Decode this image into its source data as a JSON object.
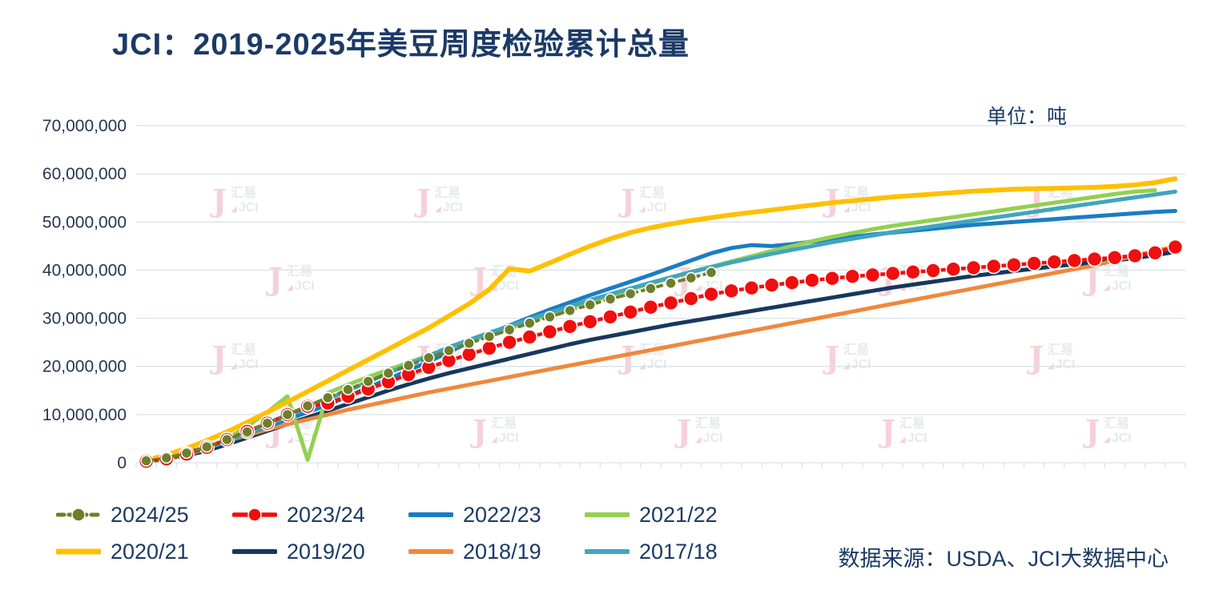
{
  "title": "JCI：2019-2025年美豆周度检验累计总量",
  "unit_label": "单位：吨",
  "source": "数据来源：USDA、JCI大数据中心",
  "watermark": {
    "logo_letter": "J",
    "line1": "汇易",
    "triangle": "◢",
    "line2": "JCI"
  },
  "chart_data": {
    "type": "line",
    "title": "JCI：2019-2025年美豆周度检验累计总量",
    "xlabel": "",
    "ylabel": "吨",
    "ylim": [
      0,
      70000000
    ],
    "ytick_step": 10000000,
    "weeks": 52,
    "grid": true,
    "legend_position": "bottom",
    "x_tick_labels_visible": false,
    "unit_scale": 1000000,
    "series": [
      {
        "name": "2024/25",
        "color": "#6e7f2b",
        "width": 4,
        "dash": "9 7",
        "marker": true,
        "marker_r": 6.5,
        "z": 8,
        "values": [
          0.4,
          1.0,
          2.0,
          3.3,
          4.8,
          6.4,
          8.2,
          10.0,
          11.8,
          13.5,
          15.2,
          16.9,
          18.6,
          20.2,
          21.8,
          23.3,
          24.8,
          26.2,
          27.6,
          29.0,
          30.3,
          31.6,
          32.8,
          34.0,
          35.1,
          36.2,
          37.3,
          38.4,
          39.5
        ]
      },
      {
        "name": "2023/24",
        "color": "#f00e0e",
        "width": 4.5,
        "dash": "",
        "marker": true,
        "marker_r": 9,
        "z": 7,
        "values": [
          0.3,
          0.8,
          1.8,
          3.2,
          4.8,
          6.5,
          8.2,
          10.0,
          11.7,
          12.4,
          13.8,
          15.3,
          16.8,
          18.3,
          19.8,
          21.2,
          22.5,
          23.8,
          25.0,
          26.1,
          27.2,
          28.3,
          29.3,
          30.3,
          31.3,
          32.3,
          33.2,
          34.1,
          35.0,
          35.7,
          36.3,
          36.9,
          37.4,
          37.9,
          38.3,
          38.7,
          39.0,
          39.3,
          39.6,
          39.9,
          40.2,
          40.5,
          40.8,
          41.1,
          41.4,
          41.7,
          42.0,
          42.3,
          42.6,
          43.0,
          43.6,
          44.8
        ]
      },
      {
        "name": "2022/23",
        "color": "#1a7dc4",
        "width": 5,
        "dash": "",
        "marker": false,
        "marker_r": 0,
        "z": 3,
        "values": [
          0.4,
          1.0,
          2.0,
          3.2,
          4.6,
          6.0,
          7.5,
          9.0,
          10.5,
          12.0,
          13.8,
          15.6,
          17.4,
          19.2,
          21.0,
          23.0,
          25.0,
          26.8,
          28.5,
          30.2,
          31.8,
          33.3,
          34.8,
          36.2,
          37.6,
          39.0,
          40.5,
          42.0,
          43.5,
          44.6,
          45.2,
          45.0,
          45.4,
          45.9,
          46.4,
          46.9,
          47.4,
          47.8,
          48.2,
          48.6,
          49.0,
          49.4,
          49.7,
          50.0,
          50.3,
          50.6,
          50.9,
          51.2,
          51.5,
          51.8,
          52.1,
          52.3
        ]
      },
      {
        "name": "2021/22",
        "color": "#92d050",
        "width": 5,
        "dash": "",
        "marker": false,
        "marker_r": 0,
        "z": 4,
        "values": [
          0.2,
          0.7,
          1.6,
          3.0,
          5.0,
          7.5,
          10.5,
          13.8,
          0.6,
          14.5,
          16.2,
          17.8,
          19.3,
          20.8,
          22.3,
          23.8,
          25.2,
          26.6,
          28.0,
          29.4,
          30.8,
          32.1,
          33.4,
          34.7,
          36.0,
          37.2,
          38.4,
          39.6,
          40.7,
          41.8,
          42.9,
          44.0,
          45.0,
          46.0,
          46.9,
          47.7,
          48.5,
          49.2,
          49.8,
          50.4,
          51.0,
          51.6,
          52.2,
          52.8,
          53.4,
          54.0,
          54.6,
          55.2,
          55.8,
          56.3,
          56.6
        ]
      },
      {
        "name": "2020/21",
        "color": "#ffc000",
        "width": 6,
        "dash": "",
        "marker": false,
        "marker_r": 0,
        "z": 6,
        "values": [
          0.5,
          1.6,
          3.0,
          4.6,
          6.4,
          8.4,
          10.5,
          12.6,
          14.8,
          17.0,
          19.2,
          21.4,
          23.6,
          25.8,
          28.0,
          30.5,
          33.0,
          36.0,
          40.3,
          39.8,
          41.5,
          43.3,
          45.0,
          46.5,
          47.8,
          48.8,
          49.6,
          50.3,
          50.9,
          51.5,
          52.0,
          52.5,
          53.0,
          53.5,
          54.0,
          54.4,
          54.8,
          55.2,
          55.5,
          55.8,
          56.1,
          56.4,
          56.6,
          56.8,
          56.9,
          57.0,
          57.1,
          57.2,
          57.4,
          57.7,
          58.2,
          59.0
        ]
      },
      {
        "name": "2019/20",
        "color": "#17375e",
        "width": 5,
        "dash": "",
        "marker": false,
        "marker_r": 0,
        "z": 1,
        "values": [
          0.3,
          0.8,
          1.5,
          2.5,
          3.8,
          5.2,
          6.6,
          8.0,
          9.4,
          10.8,
          12.2,
          13.6,
          15.0,
          16.3,
          17.5,
          18.6,
          19.6,
          20.6,
          21.6,
          22.6,
          23.6,
          24.6,
          25.5,
          26.3,
          27.1,
          27.9,
          28.7,
          29.4,
          30.1,
          30.8,
          31.5,
          32.2,
          32.9,
          33.6,
          34.3,
          35.0,
          35.7,
          36.4,
          37.0,
          37.6,
          38.2,
          38.8,
          39.3,
          39.8,
          40.3,
          40.8,
          41.2,
          41.6,
          42.0,
          42.5,
          43.1,
          43.8
        ]
      },
      {
        "name": "2018/19",
        "color": "#f0883c",
        "width": 5,
        "dash": "",
        "marker": false,
        "marker_r": 0,
        "z": 2,
        "values": [
          0.4,
          1.2,
          2.2,
          3.3,
          4.5,
          5.7,
          6.9,
          8.0,
          9.0,
          10.0,
          11.0,
          11.9,
          12.8,
          13.7,
          14.6,
          15.4,
          16.2,
          17.0,
          17.8,
          18.6,
          19.4,
          20.2,
          21.0,
          21.8,
          22.6,
          23.4,
          24.2,
          25.0,
          25.8,
          26.6,
          27.4,
          28.2,
          29.0,
          29.8,
          30.6,
          31.4,
          32.2,
          33.0,
          33.8,
          34.6,
          35.4,
          36.2,
          37.0,
          37.8,
          38.6,
          39.4,
          40.2,
          41.0,
          42.0,
          43.0,
          44.0,
          44.9
        ]
      },
      {
        "name": "2017/18",
        "color": "#42a5be",
        "width": 5,
        "dash": "",
        "marker": false,
        "marker_r": 0,
        "z": 5,
        "values": [
          0.3,
          0.9,
          1.8,
          3.0,
          4.4,
          6.0,
          7.8,
          9.6,
          11.4,
          13.2,
          15.0,
          16.8,
          18.6,
          20.4,
          22.2,
          24.0,
          25.5,
          27.0,
          28.4,
          29.8,
          31.2,
          32.5,
          33.8,
          35.0,
          36.2,
          37.4,
          38.5,
          39.6,
          40.6,
          41.6,
          42.5,
          43.4,
          44.2,
          45.0,
          45.8,
          46.5,
          47.2,
          47.9,
          48.5,
          49.1,
          49.7,
          50.3,
          50.9,
          51.5,
          52.1,
          52.7,
          53.3,
          53.9,
          54.5,
          55.1,
          55.7,
          56.3
        ]
      }
    ]
  }
}
